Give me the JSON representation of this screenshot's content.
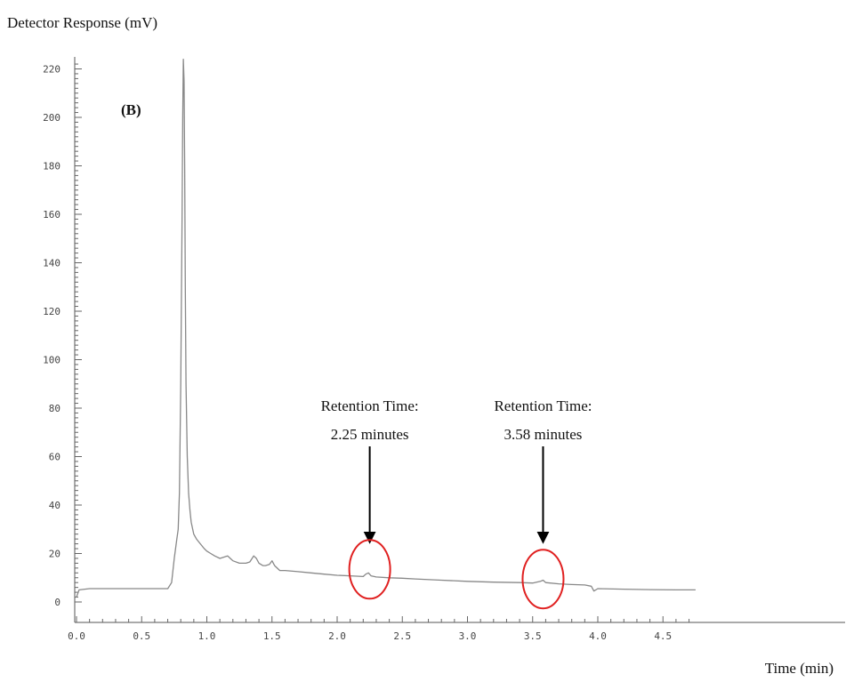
{
  "chart_data": {
    "type": "line",
    "panel_label": "(B)",
    "ylabel": "Detector Response (mV)",
    "xlabel": "Time (min)",
    "xlim": [
      0.0,
      4.75
    ],
    "ylim": [
      -8,
      224
    ],
    "x_ticks": [
      0.0,
      0.5,
      1.0,
      1.5,
      2.0,
      2.5,
      3.0,
      3.5,
      4.0,
      4.5
    ],
    "x_tick_labels": [
      "0.0",
      "0.5",
      "1.0",
      "1.5",
      "2.0",
      "2.5",
      "3.0",
      "3.5",
      "4.0",
      "4.5"
    ],
    "y_ticks": [
      0,
      20,
      40,
      60,
      80,
      100,
      120,
      140,
      160,
      180,
      200,
      220
    ],
    "y_tick_labels": [
      "0",
      "20",
      "40",
      "60",
      "80",
      "100",
      "120",
      "140",
      "160",
      "180",
      "200",
      "220"
    ],
    "grid": false,
    "series": [
      {
        "color": "#888888",
        "x": [
          0.0,
          0.02,
          0.1,
          0.3,
          0.5,
          0.7,
          0.73,
          0.75,
          0.77,
          0.78,
          0.79,
          0.8,
          0.81,
          0.815,
          0.82,
          0.825,
          0.83,
          0.835,
          0.84,
          0.85,
          0.86,
          0.87,
          0.88,
          0.9,
          0.92,
          0.95,
          0.98,
          1.0,
          1.03,
          1.06,
          1.1,
          1.13,
          1.16,
          1.18,
          1.2,
          1.25,
          1.3,
          1.33,
          1.36,
          1.38,
          1.4,
          1.43,
          1.45,
          1.48,
          1.5,
          1.52,
          1.54,
          1.56,
          1.6,
          1.7,
          1.8,
          1.9,
          2.0,
          2.1,
          2.2,
          2.22,
          2.24,
          2.26,
          2.3,
          2.4,
          2.5,
          2.6,
          2.8,
          3.0,
          3.2,
          3.4,
          3.5,
          3.56,
          3.58,
          3.6,
          3.7,
          3.8,
          3.9,
          3.95,
          3.97,
          4.0,
          4.2,
          4.4,
          4.6,
          4.75
        ],
        "y": [
          2,
          5,
          5.5,
          5.5,
          5.5,
          5.5,
          8,
          18,
          26,
          30,
          45,
          90,
          160,
          200,
          224,
          215,
          180,
          130,
          90,
          60,
          45,
          38,
          33,
          28,
          26,
          24,
          22,
          21,
          20,
          19,
          18,
          18.5,
          19,
          18,
          17,
          16,
          16,
          16.5,
          19,
          18,
          16,
          15,
          15,
          15.5,
          17,
          15,
          14,
          13,
          13,
          12.5,
          12,
          11.5,
          11,
          10.8,
          10.5,
          11.5,
          12,
          10.8,
          10.3,
          10,
          9.8,
          9.5,
          9,
          8.5,
          8.2,
          8,
          7.8,
          8.5,
          9,
          8,
          7.5,
          7.2,
          7,
          6.5,
          4.5,
          5.5,
          5.3,
          5.1,
          5,
          5
        ]
      }
    ],
    "annotations": [
      {
        "line1": "Retention Time:",
        "line2": "2.25 minutes",
        "x": 2.25,
        "y": 12
      },
      {
        "line1": "Retention Time:",
        "line2": "3.58 minutes",
        "x": 3.58,
        "y": 8
      }
    ],
    "marker_color": "#e02020"
  }
}
